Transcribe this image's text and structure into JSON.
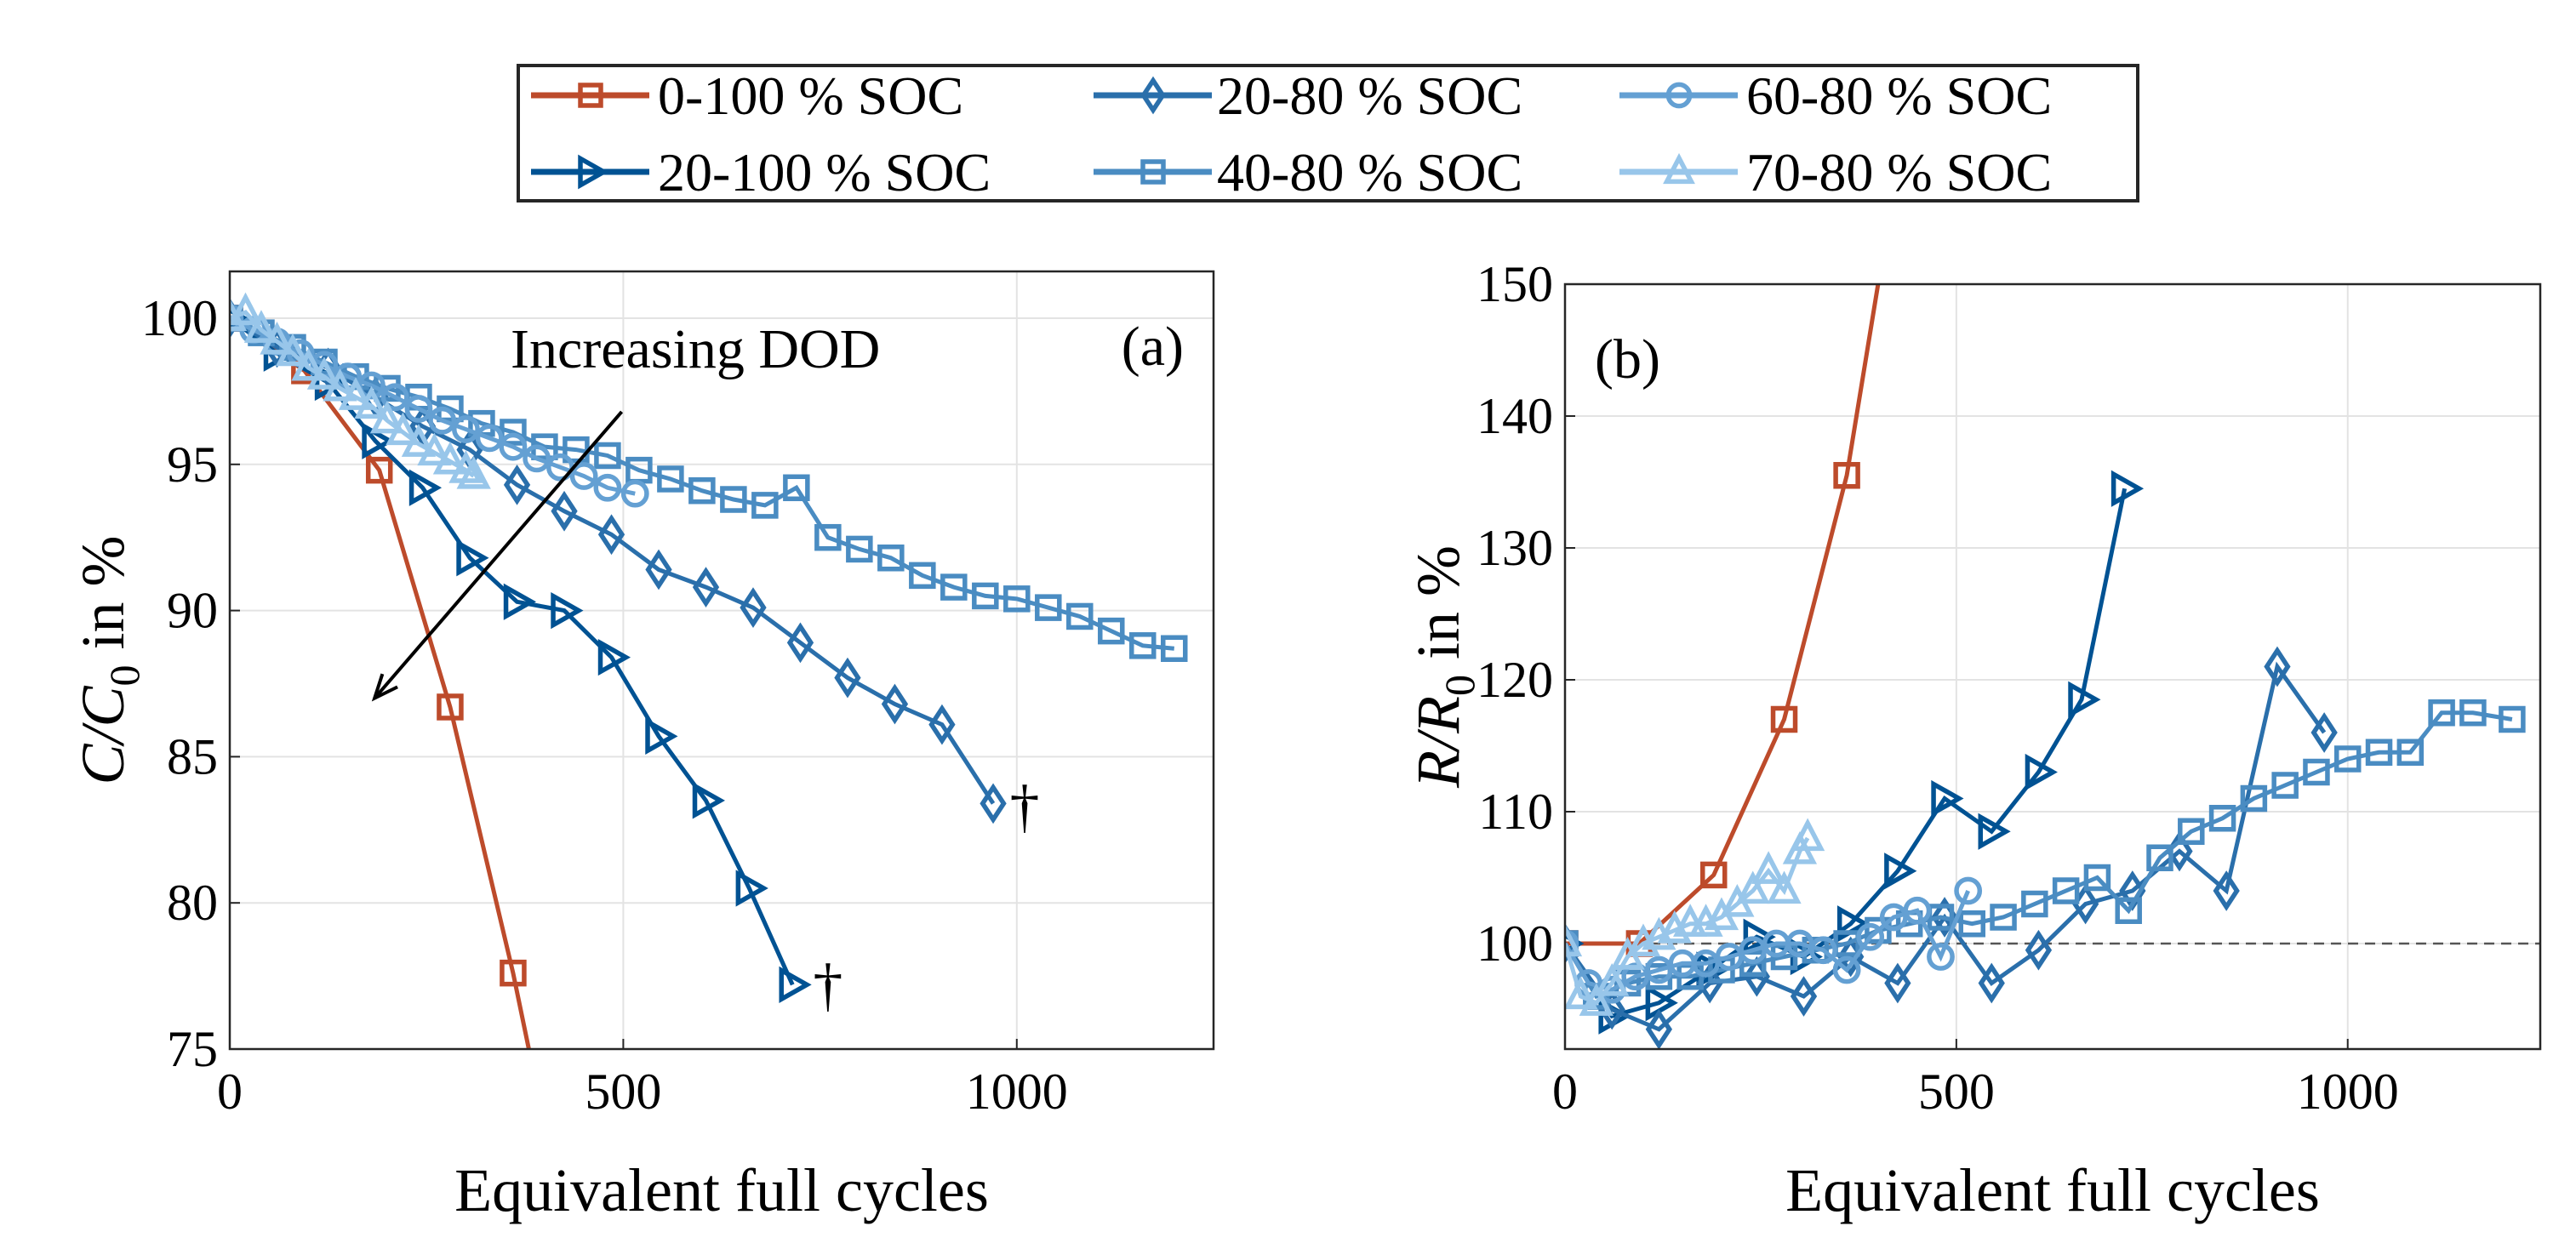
{
  "colors": {
    "0-100": "#bd4b2b",
    "20-100": "#005293",
    "20-80": "#2a6fab",
    "40-80": "#4a8cc2",
    "60-80": "#64a0d3",
    "70-80": "#98c6ea"
  },
  "legend": {
    "placement": "top-center, outside",
    "entries": [
      {
        "label": "0-100 % SOC",
        "series": "0-100",
        "marker": "square"
      },
      {
        "label": "20-80 % SOC",
        "series": "20-80",
        "marker": "diamond"
      },
      {
        "label": "60-80 % SOC",
        "series": "60-80",
        "marker": "circle"
      },
      {
        "label": "20-100 % SOC",
        "series": "20-100",
        "marker": "triangle-right"
      },
      {
        "label": "40-80 % SOC",
        "series": "40-80",
        "marker": "square"
      },
      {
        "label": "70-80 % SOC",
        "series": "70-80",
        "marker": "triangle-up"
      }
    ]
  },
  "chart_data": [
    {
      "type": "line",
      "panel_label": "(a)",
      "xlabel": "Equivalent full cycles",
      "ylabel": "C/C0 in %",
      "ylabel_main": "C/C",
      "ylabel_sub": "0",
      "ylabel_suffix": " in %",
      "xlim": [
        0,
        1250
      ],
      "ylim": [
        75,
        101.6
      ],
      "xticks": [
        0,
        500,
        1000
      ],
      "yticks": [
        75,
        80,
        85,
        90,
        95,
        100
      ],
      "grid": true,
      "annotations": [
        {
          "text": "Increasing DOD",
          "type": "arrow",
          "from": [
            498,
            96.8
          ],
          "to": [
            184,
            87.0
          ]
        },
        {
          "text": "†",
          "at": [
            1010,
            83.2
          ]
        },
        {
          "text": "†",
          "at": [
            760,
            77.1
          ]
        }
      ],
      "series": [
        {
          "key": "0-100",
          "marker": "square",
          "x": [
            0,
            95,
            190,
            280,
            360,
            380
          ],
          "y": [
            100,
            98.2,
            94.8,
            86.7,
            77.6,
            75
          ]
        },
        {
          "key": "20-100",
          "marker": "triangle-right",
          "x": [
            0,
            60,
            125,
            185,
            245,
            305,
            365,
            425,
            485,
            545,
            605,
            660,
            715
          ],
          "y": [
            100,
            98.8,
            97.8,
            95.8,
            94.2,
            91.8,
            90.3,
            90.0,
            88.4,
            85.7,
            83.5,
            80.5,
            77.2
          ]
        },
        {
          "key": "20-80",
          "marker": "diamond",
          "x": [
            0,
            60,
            125,
            185,
            245,
            305,
            365,
            425,
            485,
            545,
            605,
            665,
            725,
            785,
            845,
            905,
            970
          ],
          "y": [
            100,
            99,
            98.3,
            97.3,
            96.3,
            95.5,
            94.3,
            93.4,
            92.6,
            91.4,
            90.8,
            90.1,
            88.9,
            87.7,
            86.8,
            86.1,
            83.4
          ]
        },
        {
          "key": "40-80",
          "marker": "square",
          "x": [
            0,
            40,
            80,
            120,
            160,
            200,
            240,
            280,
            320,
            360,
            400,
            440,
            480,
            520,
            560,
            600,
            640,
            680,
            720,
            760,
            800,
            840,
            880,
            920,
            960,
            1000,
            1040,
            1080,
            1120,
            1160,
            1200
          ],
          "y": [
            100,
            99.5,
            99,
            98.5,
            98,
            97.6,
            97.3,
            96.9,
            96.4,
            96.1,
            95.6,
            95.5,
            95.3,
            94.8,
            94.5,
            94.1,
            93.8,
            93.6,
            94.2,
            92.5,
            92.1,
            91.8,
            91.2,
            90.8,
            90.5,
            90.4,
            90.1,
            89.8,
            89.3,
            88.8,
            88.7
          ]
        },
        {
          "key": "60-80",
          "marker": "circle",
          "x": [
            0,
            30,
            60,
            90,
            120,
            150,
            180,
            210,
            240,
            270,
            300,
            330,
            360,
            390,
            420,
            450,
            480,
            515
          ],
          "y": [
            100,
            99.6,
            99.2,
            98.8,
            98.4,
            98,
            97.7,
            97.3,
            96.9,
            96.5,
            96.2,
            95.9,
            95.6,
            95.2,
            94.9,
            94.6,
            94.2,
            94.0
          ]
        },
        {
          "key": "70-80",
          "marker": "triangle-up",
          "x": [
            0,
            20,
            40,
            60,
            80,
            100,
            120,
            140,
            160,
            180,
            200,
            220,
            240,
            260,
            280,
            300,
            310
          ],
          "y": [
            100,
            100.2,
            99.6,
            99.2,
            98.8,
            98.3,
            98,
            97.6,
            97.3,
            97,
            96.5,
            96.1,
            95.7,
            95.4,
            95.1,
            94.8,
            94.6
          ]
        }
      ]
    },
    {
      "type": "line",
      "panel_label": "(b)",
      "xlabel": "Equivalent full cycles",
      "ylabel": "R/R0 in %",
      "ylabel_main": "R/R",
      "ylabel_sub": "0",
      "ylabel_suffix": " in %",
      "xlim": [
        0,
        1246
      ],
      "ylim": [
        92,
        150
      ],
      "xticks": [
        0,
        500,
        1000
      ],
      "yticks": [
        100,
        110,
        120,
        130,
        140,
        150
      ],
      "grid": true,
      "reference_line": {
        "y": 100,
        "style": "dashed"
      },
      "series": [
        {
          "key": "0-100",
          "marker": "square",
          "x": [
            0,
            95,
            190,
            280,
            360,
            400
          ],
          "y": [
            100,
            100,
            105.2,
            117,
            135.5,
            150
          ],
          "marker_count": 5
        },
        {
          "key": "20-100",
          "marker": "triangle-right",
          "x": [
            0,
            60,
            120,
            185,
            245,
            305,
            365,
            425,
            485,
            545,
            605,
            660,
            715
          ],
          "y": [
            100,
            94.5,
            95.5,
            98,
            100.5,
            99,
            101.5,
            105.5,
            111,
            108.5,
            113,
            118.5,
            134.5
          ]
        },
        {
          "key": "20-80",
          "marker": "diamond",
          "x": [
            0,
            60,
            120,
            185,
            245,
            305,
            365,
            425,
            485,
            545,
            605,
            665,
            725,
            785,
            845,
            910,
            970
          ],
          "y": [
            100,
            95,
            93.5,
            97,
            97.5,
            96,
            99,
            97,
            102,
            97,
            99.5,
            103,
            104,
            107,
            104,
            121,
            116
          ]
        },
        {
          "key": "40-80",
          "marker": "square",
          "x": [
            0,
            40,
            80,
            120,
            160,
            200,
            240,
            280,
            320,
            360,
            400,
            440,
            480,
            520,
            560,
            600,
            640,
            680,
            720,
            760,
            800,
            840,
            880,
            920,
            960,
            1000,
            1040,
            1080,
            1120,
            1160,
            1210
          ],
          "y": [
            100,
            96,
            97,
            97.5,
            97.5,
            98,
            98.5,
            99,
            99.5,
            100,
            101,
            101.5,
            102,
            101.5,
            102,
            103,
            104,
            105,
            102.5,
            106.5,
            108.5,
            109.5,
            111,
            112,
            113,
            114,
            114.5,
            114.5,
            117.5,
            117.5,
            117
          ]
        },
        {
          "key": "60-80",
          "marker": "circle",
          "x": [
            0,
            30,
            60,
            90,
            120,
            150,
            180,
            210,
            240,
            270,
            300,
            330,
            360,
            390,
            420,
            450,
            480,
            515
          ],
          "y": [
            100,
            97,
            96.5,
            97.5,
            98,
            98.5,
            98.5,
            99,
            99.5,
            100,
            100,
            99.5,
            98,
            100.5,
            102,
            102.5,
            99,
            104
          ]
        },
        {
          "key": "70-80",
          "marker": "triangle-up",
          "x": [
            0,
            20,
            40,
            60,
            80,
            100,
            120,
            140,
            160,
            180,
            200,
            220,
            240,
            260,
            280,
            300,
            310
          ],
          "y": [
            100,
            96,
            95.5,
            97,
            99,
            100,
            100.5,
            101,
            101.5,
            101.5,
            102,
            103,
            104,
            105.5,
            104,
            107,
            108
          ]
        }
      ]
    }
  ]
}
